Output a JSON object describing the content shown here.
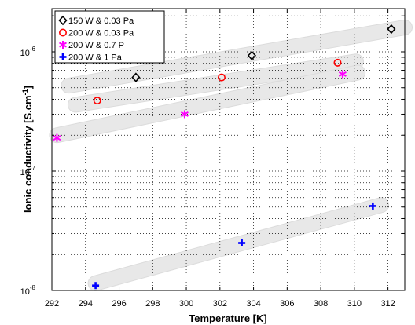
{
  "chart_data": {
    "type": "scatter",
    "title": "",
    "xlabel": "Temperature [K]",
    "ylabel": "Ionic conductivity [S.cm",
    "ylabel_superscript": "-1",
    "ylabel_close": "]",
    "xlim": [
      292,
      313
    ],
    "ylim": [
      1e-08,
      2.3e-06
    ],
    "yscale": "log",
    "grid": true,
    "legend_position": "top-left",
    "x_ticks": [
      292,
      294,
      296,
      298,
      300,
      302,
      304,
      306,
      308,
      310,
      312
    ],
    "y_ticks": [
      {
        "value": 1e-08,
        "mantissa": "10",
        "exponent": "-8"
      },
      {
        "value": 1e-07,
        "mantissa": "10",
        "exponent": "-7"
      },
      {
        "value": 1e-06,
        "mantissa": "10",
        "exponent": "-6"
      }
    ],
    "series": [
      {
        "name": "150 W & 0.03 Pa",
        "marker": "diamond",
        "color": "#000000",
        "x": [
          297.0,
          303.9,
          312.2
        ],
        "y": [
          6.1e-07,
          9.3e-07,
          1.55e-06
        ],
        "band": {
          "x": [
            293.0,
            313.0
          ],
          "y": [
            5.2e-07,
            1.6e-06
          ]
        }
      },
      {
        "name": "200 W & 0.03 Pa",
        "marker": "circle",
        "color": "#ff0000",
        "x": [
          294.7,
          302.1,
          309.0
        ],
        "y": [
          3.9e-07,
          6.1e-07,
          8.1e-07
        ],
        "band": {
          "x": [
            293.4,
            310.1
          ],
          "y": [
            3.6e-07,
            8.3e-07
          ]
        }
      },
      {
        "name": "200 W & 0.7 P",
        "marker": "star",
        "color": "#ff00ff",
        "x": [
          292.3,
          299.9,
          309.3
        ],
        "y": [
          1.9e-07,
          3e-07,
          6.5e-07
        ],
        "band": {
          "x": [
            292.3,
            310.2
          ],
          "y": [
            2e-07,
            6.7e-07
          ]
        }
      },
      {
        "name": "200 W & 1 Pa",
        "marker": "plus",
        "color": "#0000ff",
        "x": [
          294.6,
          303.3,
          311.1
        ],
        "y": [
          1.1e-08,
          2.5e-08,
          5.1e-08
        ],
        "band": {
          "x": [
            294.6,
            311.6
          ],
          "y": [
            1.15e-08,
            5.2e-08
          ]
        }
      }
    ]
  }
}
